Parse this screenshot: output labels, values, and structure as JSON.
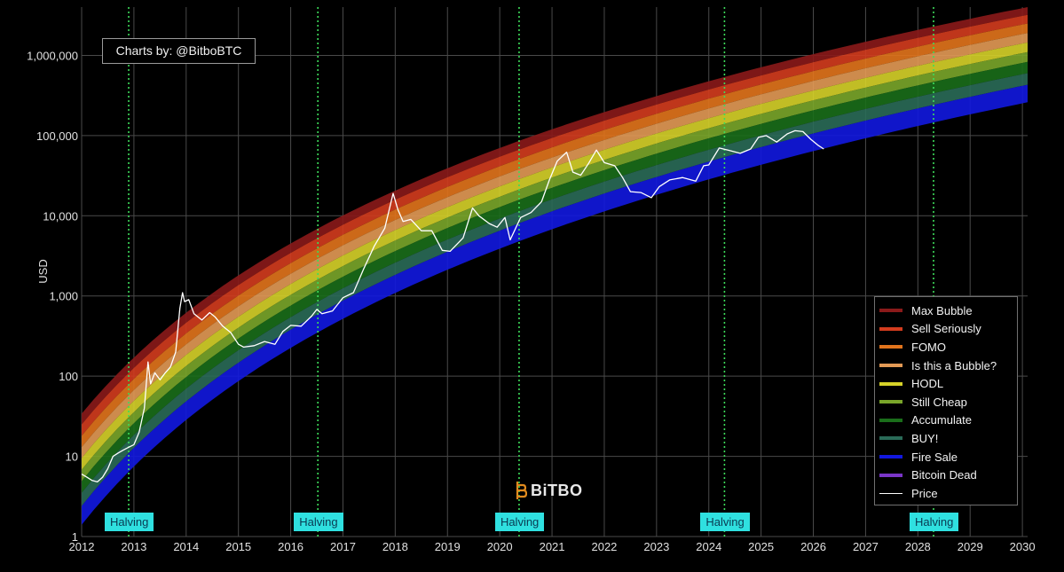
{
  "credit": "Charts by: @BitboBTC",
  "watermark": "BiTBO",
  "chart_data": {
    "type": "line",
    "title": "",
    "xlabel": "",
    "ylabel": "USD",
    "y_scale": "log",
    "ylim": [
      1,
      4000000
    ],
    "xlim": [
      2012.0,
      2030.1
    ],
    "grid": true,
    "legend_position": "bottom-right",
    "x_ticks": [
      2012,
      2013,
      2014,
      2015,
      2016,
      2017,
      2018,
      2019,
      2020,
      2021,
      2022,
      2023,
      2024,
      2025,
      2026,
      2027,
      2028,
      2029,
      2030
    ],
    "y_ticks": [
      1,
      10,
      100,
      1000,
      10000,
      100000,
      1000000
    ],
    "y_tick_labels": [
      "1",
      "10",
      "100",
      "1,000",
      "10,000",
      "100,000",
      "1,000,000"
    ],
    "bands": [
      {
        "name": "Max Bubble",
        "color": "#8b1a1a",
        "start": [
          2012.0,
          34
        ],
        "end": [
          2030.1,
          4000000
        ]
      },
      {
        "name": "Sell Seriously",
        "color": "#d43c1e",
        "start": [
          2012.0,
          25
        ],
        "end": [
          2030.1,
          3200000
        ]
      },
      {
        "name": "FOMO",
        "color": "#e2741c",
        "start": [
          2012.0,
          18
        ],
        "end": [
          2030.1,
          2500000
        ]
      },
      {
        "name": "Is this a Bubble?",
        "color": "#e39a55",
        "start": [
          2012.0,
          13
        ],
        "end": [
          2030.1,
          1900000
        ]
      },
      {
        "name": "HODL",
        "color": "#d6d229",
        "start": [
          2012.0,
          9.5
        ],
        "end": [
          2030.1,
          1450000
        ]
      },
      {
        "name": "Still Cheap",
        "color": "#7aa62a",
        "start": [
          2012.0,
          6.8
        ],
        "end": [
          2030.1,
          1100000
        ]
      },
      {
        "name": "Accumulate",
        "color": "#1a6e1a",
        "start": [
          2012.0,
          4.9
        ],
        "end": [
          2030.1,
          830000
        ]
      },
      {
        "name": "BUY!",
        "color": "#2a6b58",
        "start": [
          2012.0,
          3.5
        ],
        "end": [
          2030.1,
          600000
        ]
      },
      {
        "name": "Fire Sale",
        "color": "#1218e0",
        "start": [
          2012.0,
          2.4
        ],
        "end": [
          2030.1,
          430000
        ]
      },
      {
        "name": "Bitcoin Dead",
        "color": "#7a36c8",
        "start": [
          2012.0,
          1.4
        ],
        "end": [
          2030.1,
          260000
        ]
      }
    ],
    "band_lower_bound": {
      "start": [
        2012.0,
        1.4
      ],
      "end": [
        2030.1,
        260000
      ]
    },
    "price_series": {
      "name": "Price",
      "color": "#ffffff",
      "points": [
        [
          2012.0,
          6
        ],
        [
          2012.1,
          5.5
        ],
        [
          2012.2,
          5
        ],
        [
          2012.3,
          4.8
        ],
        [
          2012.4,
          5.5
        ],
        [
          2012.5,
          7
        ],
        [
          2012.6,
          10
        ],
        [
          2012.7,
          11
        ],
        [
          2012.8,
          12
        ],
        [
          2012.9,
          13
        ],
        [
          2013.0,
          14
        ],
        [
          2013.1,
          20
        ],
        [
          2013.2,
          40
        ],
        [
          2013.27,
          150
        ],
        [
          2013.32,
          80
        ],
        [
          2013.4,
          110
        ],
        [
          2013.5,
          90
        ],
        [
          2013.6,
          110
        ],
        [
          2013.7,
          130
        ],
        [
          2013.8,
          200
        ],
        [
          2013.88,
          700
        ],
        [
          2013.93,
          1100
        ],
        [
          2013.97,
          850
        ],
        [
          2014.05,
          900
        ],
        [
          2014.15,
          600
        ],
        [
          2014.3,
          500
        ],
        [
          2014.45,
          620
        ],
        [
          2014.55,
          550
        ],
        [
          2014.7,
          420
        ],
        [
          2014.85,
          350
        ],
        [
          2015.0,
          250
        ],
        [
          2015.1,
          230
        ],
        [
          2015.3,
          240
        ],
        [
          2015.5,
          270
        ],
        [
          2015.7,
          250
        ],
        [
          2015.85,
          360
        ],
        [
          2016.0,
          430
        ],
        [
          2016.2,
          420
        ],
        [
          2016.4,
          560
        ],
        [
          2016.5,
          680
        ],
        [
          2016.6,
          600
        ],
        [
          2016.8,
          650
        ],
        [
          2017.0,
          950
        ],
        [
          2017.2,
          1100
        ],
        [
          2017.4,
          2200
        ],
        [
          2017.6,
          4200
        ],
        [
          2017.8,
          7000
        ],
        [
          2017.96,
          19000
        ],
        [
          2018.05,
          12000
        ],
        [
          2018.15,
          8500
        ],
        [
          2018.3,
          9000
        ],
        [
          2018.5,
          6500
        ],
        [
          2018.7,
          6500
        ],
        [
          2018.9,
          3700
        ],
        [
          2019.05,
          3600
        ],
        [
          2019.3,
          5300
        ],
        [
          2019.48,
          12500
        ],
        [
          2019.6,
          10000
        ],
        [
          2019.8,
          8000
        ],
        [
          2019.95,
          7200
        ],
        [
          2020.1,
          9500
        ],
        [
          2020.2,
          5000
        ],
        [
          2020.4,
          9500
        ],
        [
          2020.6,
          11000
        ],
        [
          2020.8,
          15000
        ],
        [
          2020.95,
          28000
        ],
        [
          2021.1,
          48000
        ],
        [
          2021.28,
          62000
        ],
        [
          2021.4,
          35000
        ],
        [
          2021.55,
          32000
        ],
        [
          2021.7,
          45000
        ],
        [
          2021.85,
          66000
        ],
        [
          2022.0,
          46000
        ],
        [
          2022.2,
          42000
        ],
        [
          2022.35,
          30000
        ],
        [
          2022.5,
          20000
        ],
        [
          2022.7,
          19500
        ],
        [
          2022.9,
          16800
        ],
        [
          2023.05,
          23000
        ],
        [
          2023.25,
          28000
        ],
        [
          2023.5,
          30000
        ],
        [
          2023.75,
          27000
        ],
        [
          2023.9,
          42000
        ],
        [
          2024.0,
          43000
        ],
        [
          2024.2,
          70000
        ],
        [
          2024.4,
          65000
        ],
        [
          2024.6,
          60000
        ],
        [
          2024.8,
          68000
        ],
        [
          2024.95,
          95000
        ],
        [
          2025.1,
          100000
        ],
        [
          2025.3,
          83000
        ],
        [
          2025.5,
          105000
        ],
        [
          2025.65,
          115000
        ],
        [
          2025.8,
          112000
        ],
        [
          2025.95,
          90000
        ],
        [
          2026.1,
          75000
        ],
        [
          2026.2,
          68000
        ]
      ]
    },
    "halvings": [
      {
        "label": "Halving",
        "x": 2012.9
      },
      {
        "label": "Halving",
        "x": 2016.52
      },
      {
        "label": "Halving",
        "x": 2020.37
      },
      {
        "label": "Halving",
        "x": 2024.3
      },
      {
        "label": "Halving",
        "x": 2028.3
      }
    ]
  }
}
